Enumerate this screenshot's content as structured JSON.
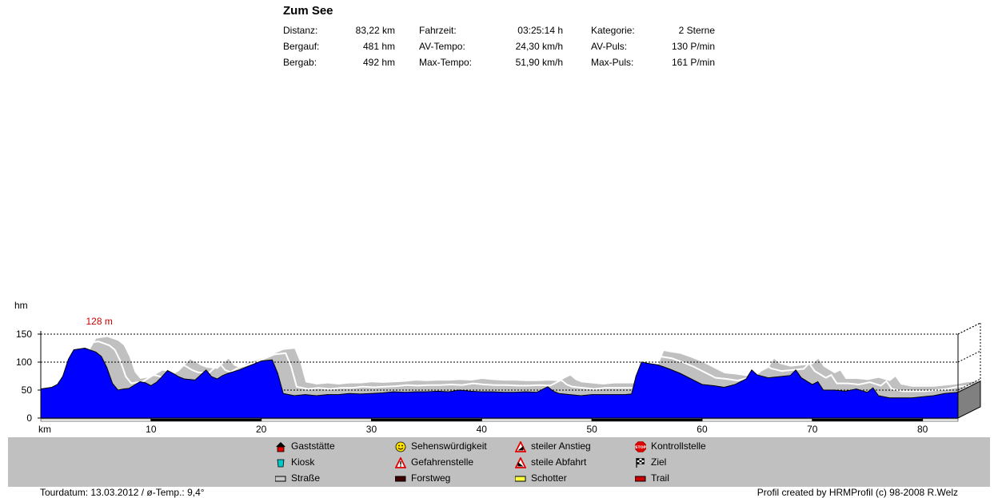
{
  "header": {
    "title": "Zum See",
    "stats": [
      {
        "label": "Distanz:",
        "value": "83,22 km"
      },
      {
        "label": "Fahrzeit:",
        "value": "03:25:14 h"
      },
      {
        "label": "Kategorie:",
        "value": "2 Sterne"
      },
      {
        "label": "Bergauf:",
        "value": "481 hm"
      },
      {
        "label": "AV-Tempo:",
        "value": "24,30 km/h"
      },
      {
        "label": "AV-Puls:",
        "value": "130 P/min"
      },
      {
        "label": "Bergab:",
        "value": "492 hm"
      },
      {
        "label": "Max-Tempo:",
        "value": "51,90 km/h"
      },
      {
        "label": "Max-Puls:",
        "value": "161 P/min"
      }
    ]
  },
  "chart_data": {
    "type": "area",
    "ylabel": "hm",
    "xlabel": "km",
    "x_tick_labels": [
      "10",
      "20",
      "30",
      "40",
      "50",
      "60",
      "70",
      "80"
    ],
    "y_tick_labels": [
      "0",
      "50",
      "100",
      "150"
    ],
    "xlim": [
      0,
      83.22
    ],
    "ylim": [
      0,
      150
    ],
    "max_annotation": {
      "text": "128 m",
      "x": 5.6,
      "y": 128,
      "color": "#cc0000"
    },
    "fill_color": "#0000ff",
    "shadow_color": "#c0c0c0",
    "grid": true,
    "series": [
      {
        "x": [
          0,
          1,
          1.5,
          2,
          2.5,
          3,
          4,
          5,
          5.5,
          6,
          6.5,
          7,
          7.5,
          8,
          9,
          9.5,
          10,
          10.5,
          11,
          11.5,
          12,
          12.5,
          13,
          14,
          15,
          15.5,
          16,
          16.5,
          17,
          18,
          19,
          20,
          21,
          21.5,
          22,
          23,
          24,
          25,
          26,
          27,
          28,
          29,
          30,
          31,
          32,
          33,
          34,
          35,
          36,
          37,
          38,
          39,
          40,
          41,
          42,
          43,
          44,
          45,
          46,
          46.5,
          47,
          48,
          49,
          50,
          51,
          52,
          53,
          53.6,
          54,
          54.5,
          55,
          56,
          57,
          58,
          59,
          60,
          61,
          62,
          63,
          64,
          64.5,
          65,
          66,
          67,
          68,
          68.5,
          69,
          70,
          70.5,
          71,
          72,
          73,
          74,
          75,
          75.5,
          76,
          77,
          78,
          79,
          80,
          81,
          82,
          83.22
        ],
        "y": [
          52,
          55,
          60,
          75,
          105,
          122,
          125,
          118,
          110,
          90,
          62,
          50,
          52,
          53,
          65,
          63,
          58,
          64,
          74,
          85,
          80,
          74,
          70,
          68,
          86,
          74,
          70,
          76,
          80,
          86,
          94,
          102,
          104,
          80,
          44,
          40,
          42,
          40,
          42,
          42,
          44,
          43,
          44,
          45,
          47,
          46,
          47,
          47,
          48,
          47,
          50,
          48,
          47,
          47,
          46,
          46,
          47,
          46,
          56,
          48,
          44,
          42,
          40,
          42,
          42,
          42,
          42,
          43,
          75,
          100,
          98,
          95,
          88,
          80,
          70,
          60,
          58,
          55,
          60,
          70,
          86,
          77,
          72,
          74,
          76,
          86,
          72,
          60,
          65,
          50,
          50,
          48,
          52,
          46,
          54,
          40,
          36,
          36,
          36,
          38,
          40,
          44,
          46
        ]
      }
    ]
  },
  "legend": {
    "items": [
      {
        "label": "Gaststätte",
        "icon": "house-icon"
      },
      {
        "label": "Kiosk",
        "icon": "cup-icon"
      },
      {
        "label": "Straße",
        "icon": "road-swatch-gray"
      },
      {
        "label": "Sehenswürdigkeit",
        "icon": "smiley-icon"
      },
      {
        "label": "Gefahrenstelle",
        "icon": "warning-icon"
      },
      {
        "label": "Forstweg",
        "icon": "forest-path-swatch"
      },
      {
        "label": "steiler Anstieg",
        "icon": "steep-climb-icon"
      },
      {
        "label": "steile Abfahrt",
        "icon": "steep-descent-icon"
      },
      {
        "label": "Schotter",
        "icon": "gravel-swatch-yellow"
      },
      {
        "label": "Kontrollstelle",
        "icon": "stop-icon"
      },
      {
        "label": "Ziel",
        "icon": "finish-flag-icon"
      },
      {
        "label": "Trail",
        "icon": "trail-swatch-red"
      }
    ]
  },
  "footer": {
    "left": "Tourdatum: 13.03.2012  /  ø-Temp.: 9,4°",
    "right": "Profil created by HRMProfil (c) 98-2008 R.Welz"
  }
}
